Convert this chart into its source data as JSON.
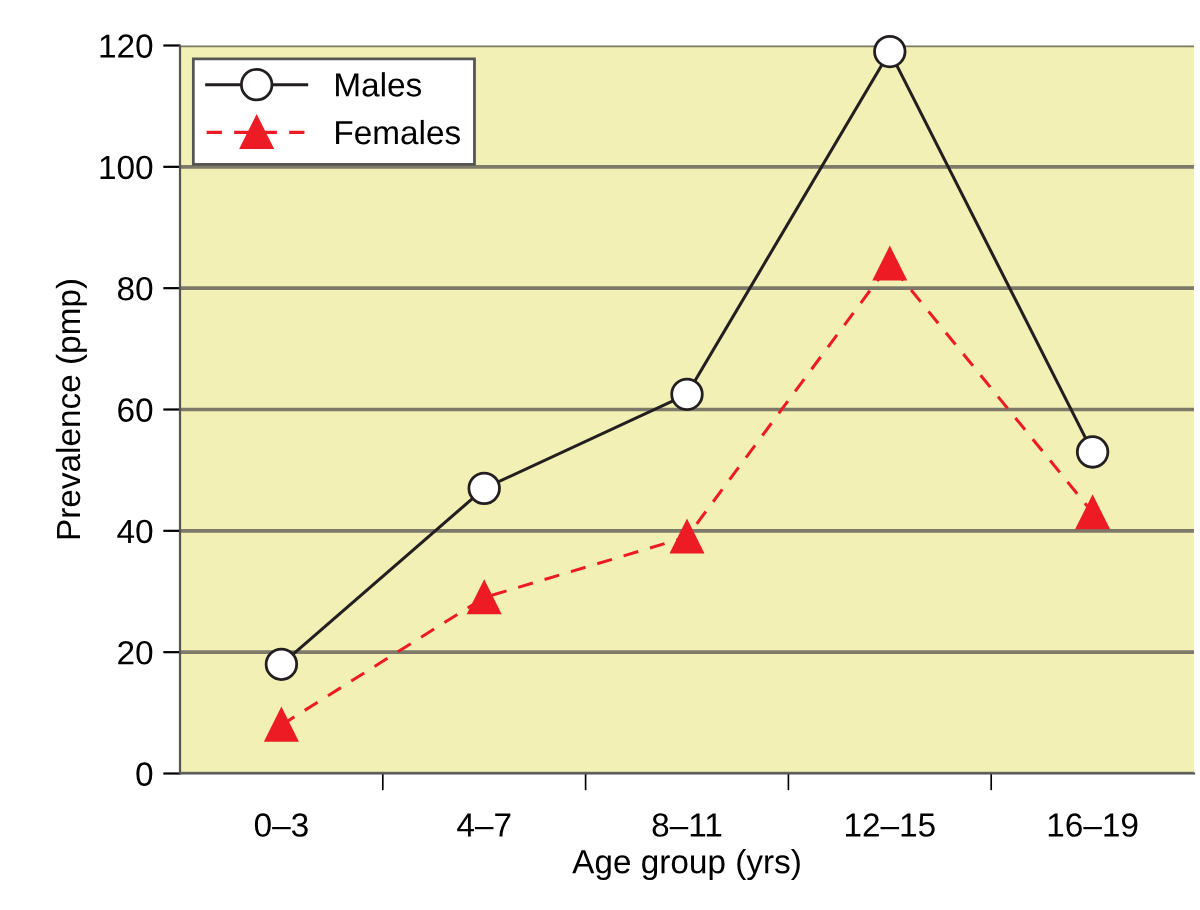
{
  "chart_data": {
    "type": "line",
    "xlabel": "Age group (yrs)",
    "ylabel": "Prevalence (pmp)",
    "categories": [
      "0–3",
      "4–7",
      "8–11",
      "12–15",
      "16–19"
    ],
    "series": [
      {
        "name": "Males",
        "color": "#231f20",
        "values": [
          18,
          47,
          62.5,
          119,
          53
        ],
        "marker": "circle",
        "line_style": "solid"
      },
      {
        "name": "Females",
        "color": "#ed1c24",
        "values": [
          8,
          29,
          39,
          84,
          43
        ],
        "marker": "triangle",
        "line_style": "dashed"
      }
    ],
    "ylim": [
      0,
      120
    ],
    "yticks": [
      0,
      20,
      40,
      60,
      80,
      100,
      120
    ],
    "grid": "y",
    "legend": "top left"
  }
}
